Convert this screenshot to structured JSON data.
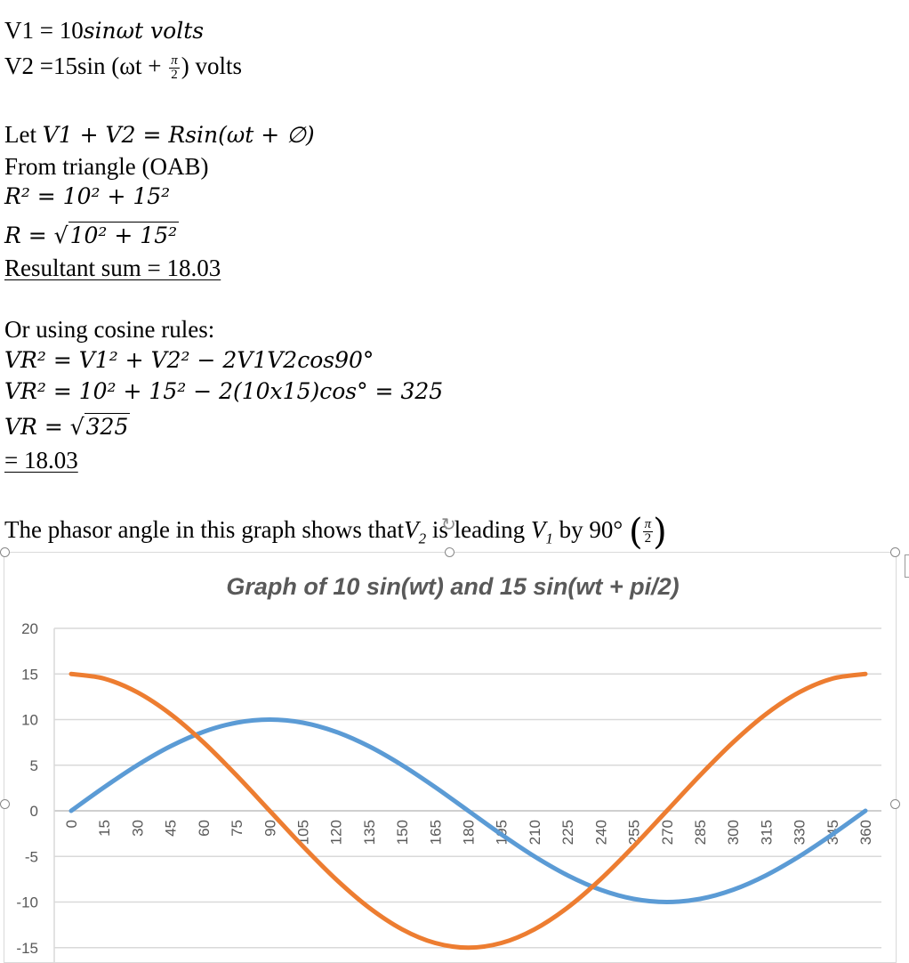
{
  "doc": {
    "v1_prefix": "V1 = 10",
    "v1_math": "sinωt volts",
    "v2_prefix": "V2 =15sin (ωt +",
    "v2_frac_num": "π",
    "v2_frac_den": "2",
    "v2_suffix": ") volts",
    "let_prefix": "Let",
    "let_math": "V1 + V2 = Rsin(ωt + ∅)",
    "triangle_line": "From triangle (OAB)",
    "r2_line": "R² = 10² + 15²",
    "r_lhs": "R = √",
    "r_radicand": "10² + 15²",
    "resultant_line": "Resultant sum = 18.03",
    "cosine_intro": "Or using cosine rules:",
    "vr2_line1": "VR² = V1² + V2² − 2V1V2cos90°",
    "vr2_line2": "VR² = 10² + 15² − 2(10x15)cos° = 325",
    "vr_lhs": "VR = √",
    "vr_radicand": "325",
    "vr_result": "= 18.03",
    "phasor_text_a": "The phasor angle in this graph shows that",
    "phasor_v2": "V",
    "phasor_v2_sub": "2",
    "phasor_text_b": " is leading ",
    "phasor_v1": "V",
    "phasor_v1_sub": "1",
    "phasor_text_c": " by 90°",
    "phasor_frac_num": "π",
    "phasor_frac_den": "2"
  },
  "chart_data": {
    "type": "line",
    "title": "Graph of 10 sin(wt) and 15 sin(wt + pi/2)",
    "xlabel": "",
    "ylabel": "",
    "x": [
      0,
      15,
      30,
      45,
      60,
      75,
      90,
      105,
      120,
      135,
      150,
      165,
      180,
      195,
      210,
      225,
      240,
      255,
      270,
      285,
      300,
      315,
      330,
      345,
      360
    ],
    "ylim": [
      -15,
      20
    ],
    "yticks": [
      20,
      15,
      10,
      5,
      0,
      -5,
      -10,
      -15
    ],
    "grid": true,
    "series": [
      {
        "color": "#5b9bd5",
        "values": [
          0,
          2.59,
          5,
          7.07,
          8.66,
          9.66,
          10,
          9.66,
          8.66,
          7.07,
          5,
          2.59,
          0,
          -2.59,
          -5,
          -7.07,
          -8.66,
          -9.66,
          -10,
          -9.66,
          -8.66,
          -7.07,
          -5,
          -2.59,
          0
        ]
      },
      {
        "color": "#ed7d31",
        "values": [
          15,
          14.49,
          12.99,
          10.61,
          7.5,
          3.88,
          0,
          -3.88,
          -7.5,
          -10.61,
          -12.99,
          -14.49,
          -15,
          -14.49,
          -12.99,
          -10.61,
          -7.5,
          -3.88,
          0,
          3.88,
          7.5,
          10.61,
          12.99,
          14.49,
          15
        ]
      }
    ]
  }
}
